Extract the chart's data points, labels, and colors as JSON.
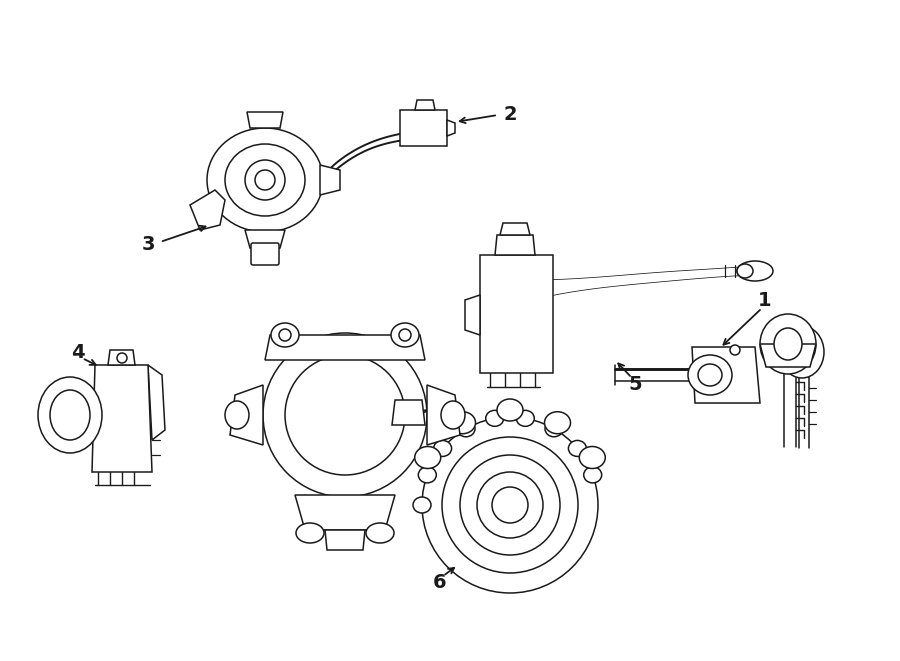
{
  "background_color": "#ffffff",
  "line_color": "#1a1a1a",
  "lw": 1.1,
  "fig_width": 9.0,
  "fig_height": 6.61,
  "dpi": 100
}
